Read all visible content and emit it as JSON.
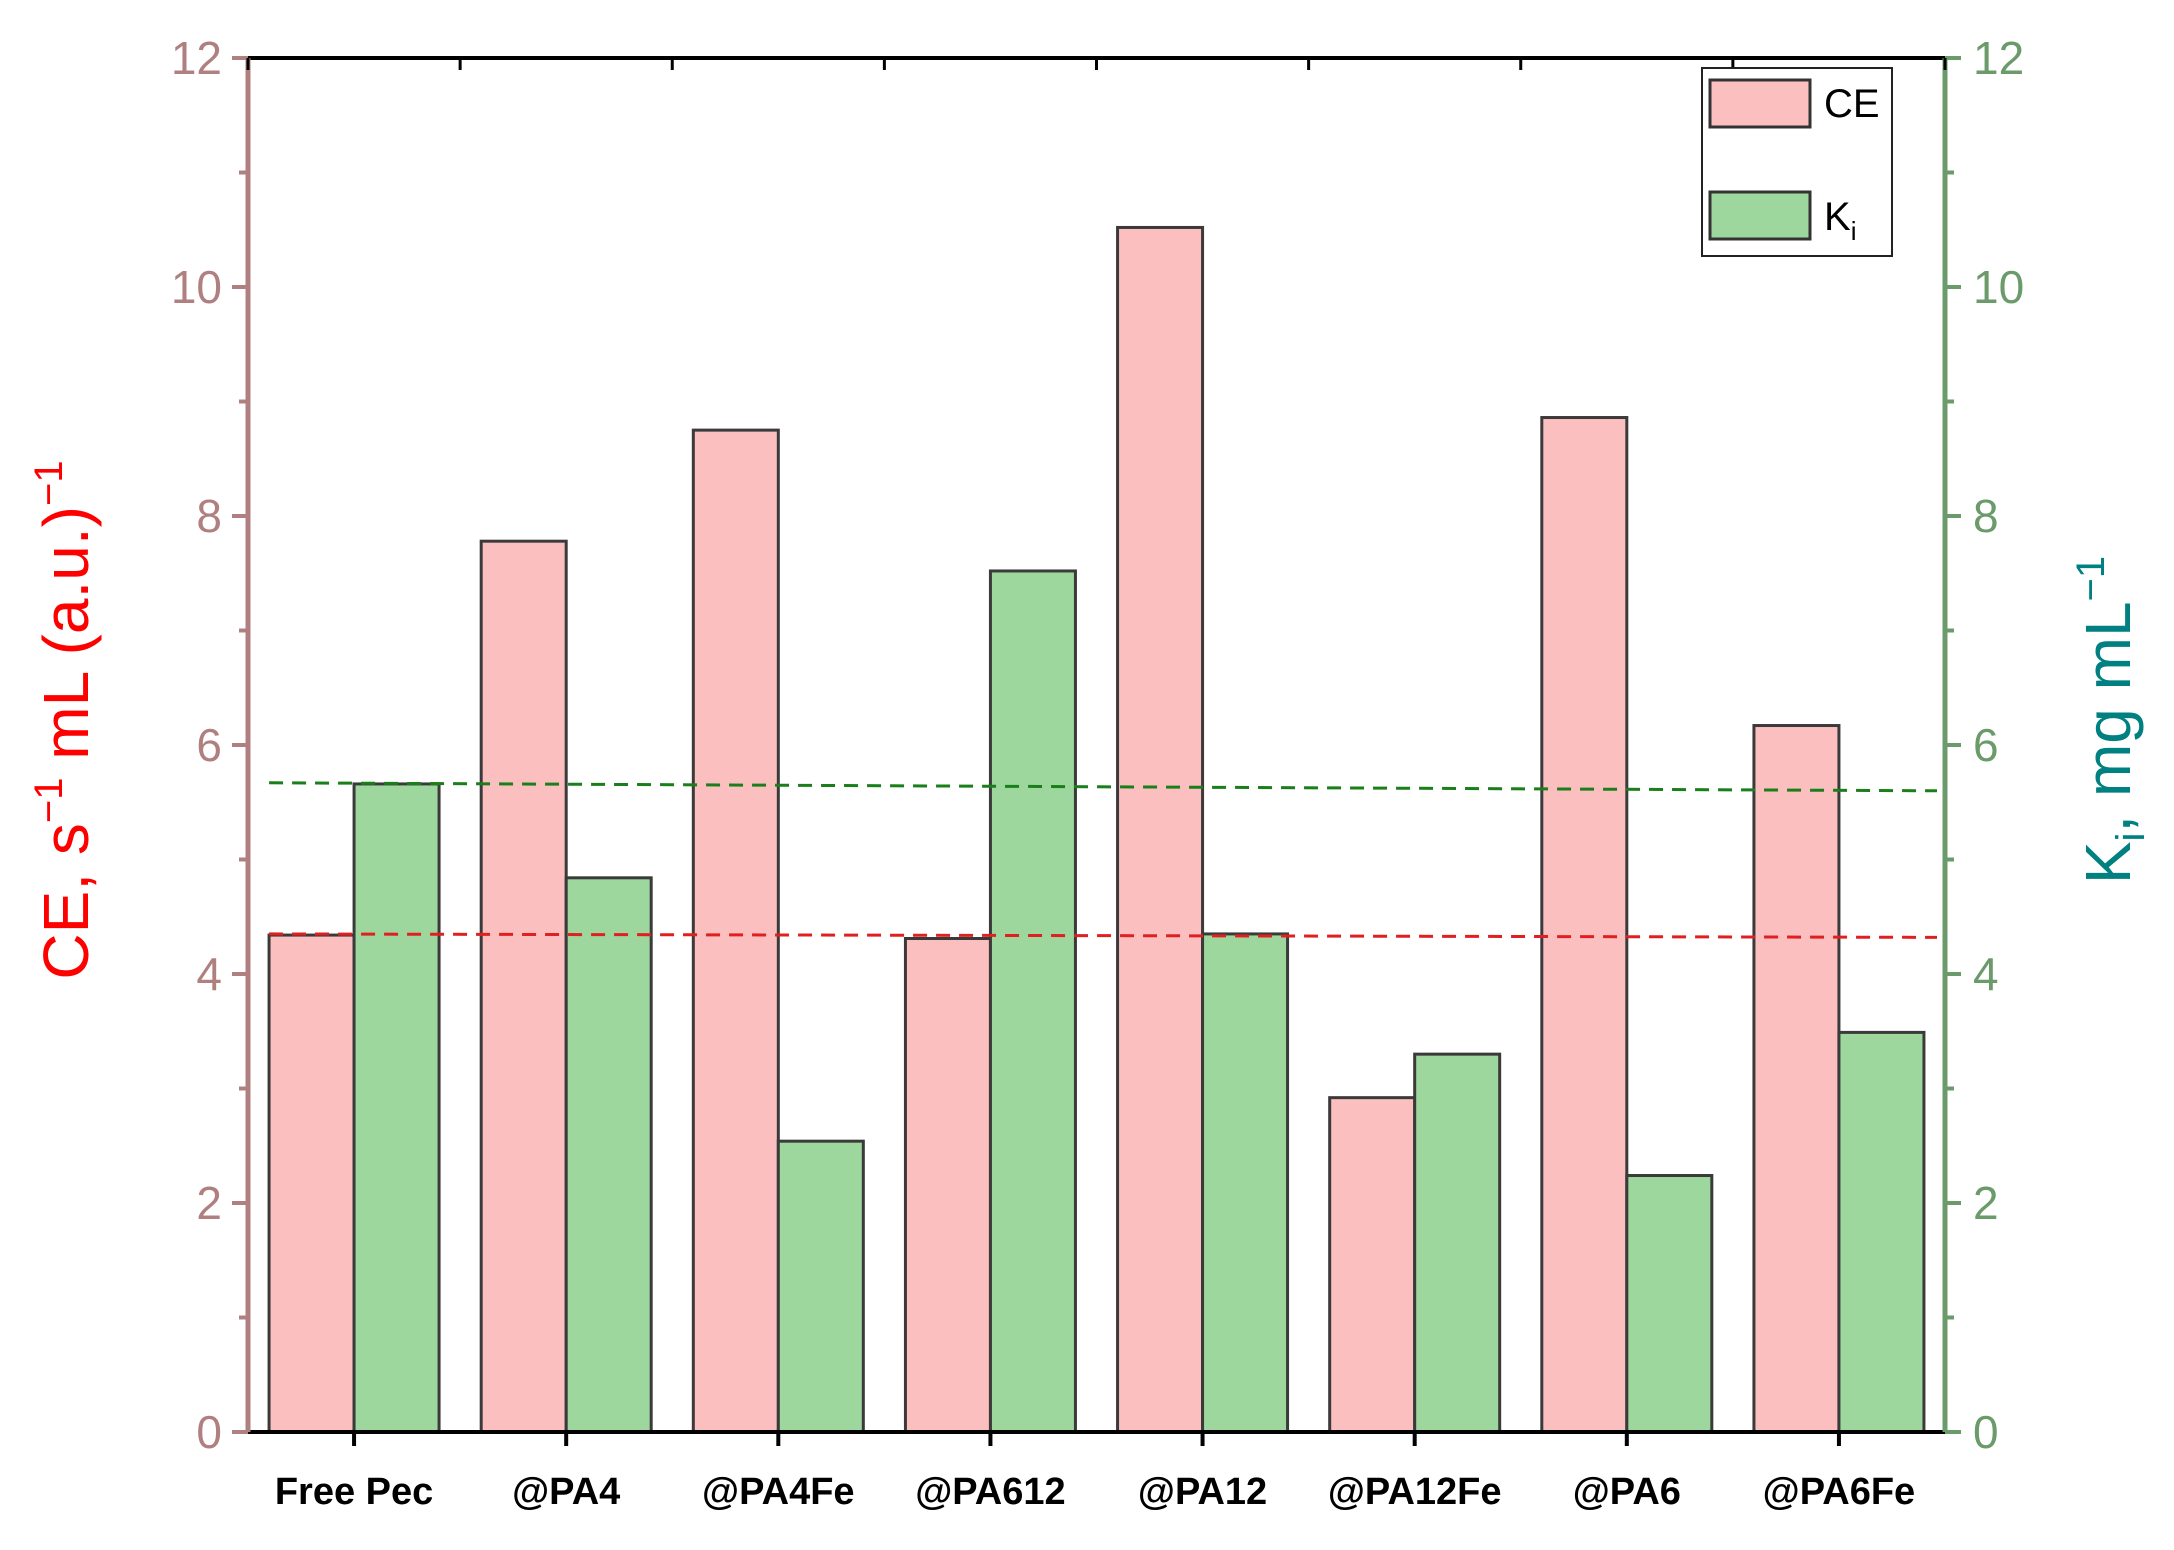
{
  "chart_data": {
    "type": "bar",
    "categories": [
      "Free Pec",
      "@PA4",
      "@PA4Fe",
      "@PA612",
      "@PA12",
      "@PA12Fe",
      "@PA6",
      "@PA6Fe"
    ],
    "series": [
      {
        "name": "CE",
        "values": [
          4.34,
          7.78,
          8.75,
          4.31,
          10.52,
          2.92,
          8.86,
          6.17
        ],
        "color": "#fcbfc0",
        "axis": "left"
      },
      {
        "name": "K",
        "name_sub": "i",
        "values": [
          5.66,
          4.84,
          2.54,
          7.52,
          4.35,
          3.3,
          2.24,
          3.49
        ],
        "color": "#9dd79d",
        "axis": "right"
      }
    ],
    "left_axis": {
      "label_main": "CE, s",
      "label_sup1": "−1",
      "label_mid": " mL (a.u.)",
      "label_sup2": "−1",
      "ylim": [
        0,
        12
      ],
      "ticks": [
        "0",
        "2",
        "4",
        "6",
        "8",
        "10",
        "12"
      ],
      "color": "#b08080",
      "title_color": "#ff0000"
    },
    "right_axis": {
      "label_main": "K",
      "label_sub": "i",
      "label_mid": ", mg mL",
      "label_sup": "−1",
      "ylim": [
        0,
        12
      ],
      "ticks": [
        "0",
        "2",
        "4",
        "6",
        "8",
        "10",
        "12"
      ],
      "color": "#6b9a6b",
      "title_color": "#008080"
    },
    "reference_lines": [
      {
        "series": "CE",
        "y_start": 4.35,
        "y_end": 4.32,
        "color": "#e02020",
        "style": "dashed"
      },
      {
        "series": "K",
        "y_start": 5.67,
        "y_end": 5.6,
        "color": "#1a7f1a",
        "style": "dashed"
      }
    ],
    "legend_position": "top-right",
    "grid": false
  }
}
